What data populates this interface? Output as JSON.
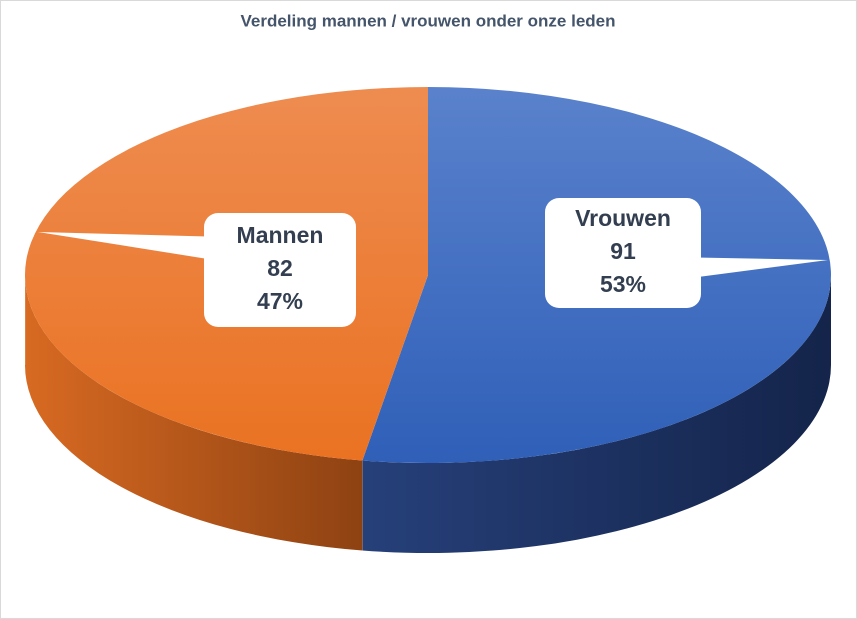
{
  "chart_data": {
    "type": "pie3d",
    "title": "Verdeling mannen / vrouwen onder onze leden",
    "categories": [
      "Vrouwen",
      "Mannen"
    ],
    "values": [
      91,
      82
    ],
    "percentages": [
      {
        "value": 53,
        "label": "53%"
      },
      {
        "value": 47,
        "label": "47%"
      }
    ],
    "colors": [
      "#4472c4",
      "#ed7d31"
    ]
  }
}
